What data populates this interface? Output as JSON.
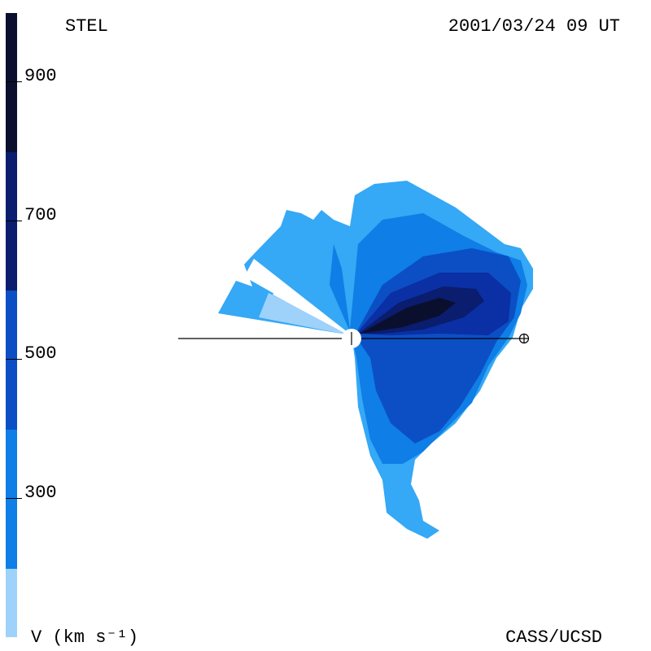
{
  "header": {
    "observatory": "STEL",
    "datetime": "2001/03/24 09 UT"
  },
  "footer": {
    "units": "V (km s⁻¹)",
    "credit": "CASS/UCSD"
  },
  "colorbar": {
    "tick_labels": [
      "900",
      "700",
      "500",
      "300"
    ],
    "levels": [
      {
        "color": "#0a0f2e"
      },
      {
        "color": "#0a1d6e"
      },
      {
        "color": "#0b2fa4"
      },
      {
        "color": "#0c4fc4"
      },
      {
        "color": "#0f7ee6"
      },
      {
        "color": "#35a8f6"
      },
      {
        "color": "#9ed2fb"
      }
    ]
  },
  "markers": {
    "sun_icon": "sun-circle-icon",
    "earth_icon": "earth-symbol-icon"
  }
}
